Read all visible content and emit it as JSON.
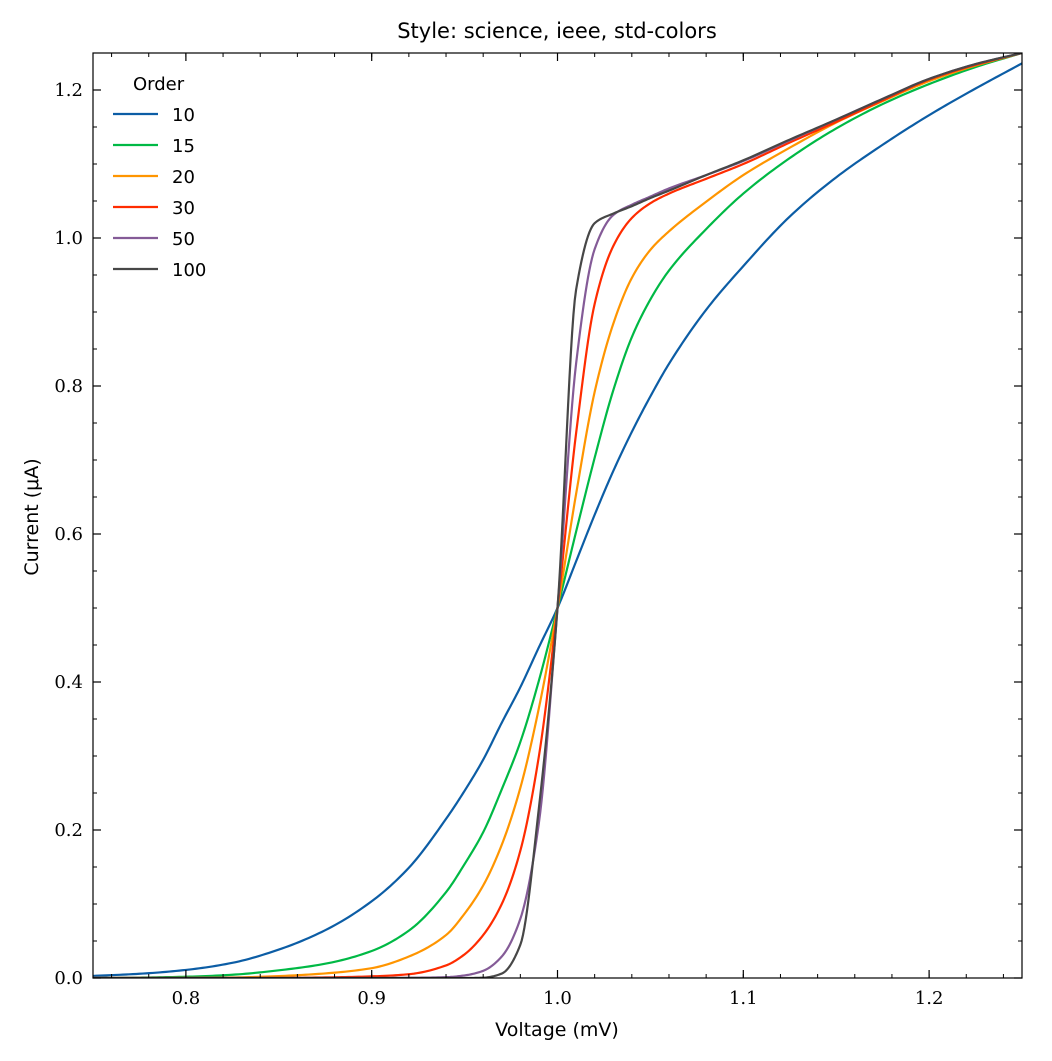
{
  "chart_data": {
    "type": "line",
    "title": "Style: science, ieee, std-colors",
    "xlabel": "Voltage (mV)",
    "ylabel": "Current (μA)",
    "xlim": [
      0.75,
      1.25
    ],
    "ylim": [
      0.0,
      1.25
    ],
    "xticks": [
      {
        "value": 0.8,
        "label": "0.8"
      },
      {
        "value": 0.9,
        "label": "0.9"
      },
      {
        "value": 1.0,
        "label": "1.0"
      },
      {
        "value": 1.1,
        "label": "1.1"
      },
      {
        "value": 1.2,
        "label": "1.2"
      }
    ],
    "yticks": [
      {
        "value": 0.0,
        "label": "0.0"
      },
      {
        "value": 0.2,
        "label": "0.2"
      },
      {
        "value": 0.4,
        "label": "0.4"
      },
      {
        "value": 0.6,
        "label": "0.6"
      },
      {
        "value": 0.8,
        "label": "0.8"
      },
      {
        "value": 1.0,
        "label": "1.0"
      },
      {
        "value": 1.2,
        "label": "1.2"
      }
    ],
    "grid": false,
    "legend": {
      "title": "Order",
      "placement": "top-left"
    },
    "x": [
      0.75,
      0.775,
      0.8,
      0.825,
      0.85,
      0.875,
      0.9,
      0.92,
      0.94,
      0.95,
      0.96,
      0.97,
      0.98,
      0.99,
      1.0,
      1.01,
      1.02,
      1.03,
      1.04,
      1.05,
      1.06,
      1.08,
      1.1,
      1.125,
      1.15,
      1.175,
      1.2,
      1.225,
      1.25
    ],
    "series": [
      {
        "name": "10",
        "color": "#0C5DA5",
        "values": [
          0.0028,
          0.0057,
          0.0109,
          0.0205,
          0.0384,
          0.0646,
          0.1037,
          0.149,
          0.215,
          0.253,
          0.295,
          0.345,
          0.393,
          0.447,
          0.5,
          0.563,
          0.626,
          0.685,
          0.738,
          0.786,
          0.83,
          0.903,
          0.962,
          1.029,
          1.082,
          1.126,
          1.166,
          1.202,
          1.236
        ]
      },
      {
        "name": "15",
        "color": "#00B945",
        "values": [
          0.0,
          0.0006,
          0.0017,
          0.0044,
          0.0104,
          0.0193,
          0.0365,
          0.064,
          0.116,
          0.154,
          0.197,
          0.255,
          0.319,
          0.402,
          0.5,
          0.603,
          0.703,
          0.794,
          0.866,
          0.917,
          0.956,
          1.012,
          1.06,
          1.108,
          1.148,
          1.181,
          1.208,
          1.231,
          1.25
        ]
      },
      {
        "name": "20",
        "color": "#FF9500",
        "values": [
          0.0,
          0.0,
          0.0002,
          0.0007,
          0.0026,
          0.0062,
          0.0133,
          0.029,
          0.058,
          0.087,
          0.125,
          0.18,
          0.257,
          0.365,
          0.5,
          0.654,
          0.792,
          0.884,
          0.946,
          0.984,
          1.009,
          1.049,
          1.085,
          1.122,
          1.156,
          1.185,
          1.212,
          1.233,
          1.25
        ]
      },
      {
        "name": "30",
        "color": "#FF2C00",
        "values": [
          0.0,
          0.0,
          0.0,
          0.0,
          0.0002,
          0.0008,
          0.0022,
          0.0051,
          0.017,
          0.032,
          0.058,
          0.1,
          0.172,
          0.3,
          0.5,
          0.736,
          0.911,
          0.989,
          1.027,
          1.047,
          1.06,
          1.08,
          1.1,
          1.129,
          1.157,
          1.186,
          1.214,
          1.234,
          1.25
        ]
      },
      {
        "name": "50",
        "color": "#845B97",
        "values": [
          0.0,
          0.0,
          0.0,
          0.0,
          0.0,
          0.0,
          0.0,
          0.0003,
          0.0011,
          0.0035,
          0.0097,
          0.029,
          0.08,
          0.21,
          0.5,
          0.83,
          0.985,
          1.031,
          1.045,
          1.056,
          1.067,
          1.085,
          1.104,
          1.132,
          1.16,
          1.188,
          1.215,
          1.235,
          1.25
        ]
      },
      {
        "name": "100",
        "color": "#474747",
        "values": [
          0.0,
          0.0,
          0.0,
          0.0,
          0.0,
          0.0,
          0.0,
          0.0,
          0.0,
          0.0,
          0.0004,
          0.006,
          0.045,
          0.23,
          0.5,
          0.93,
          1.02,
          1.033,
          1.043,
          1.054,
          1.064,
          1.085,
          1.105,
          1.133,
          1.16,
          1.188,
          1.215,
          1.235,
          1.25
        ]
      }
    ]
  }
}
